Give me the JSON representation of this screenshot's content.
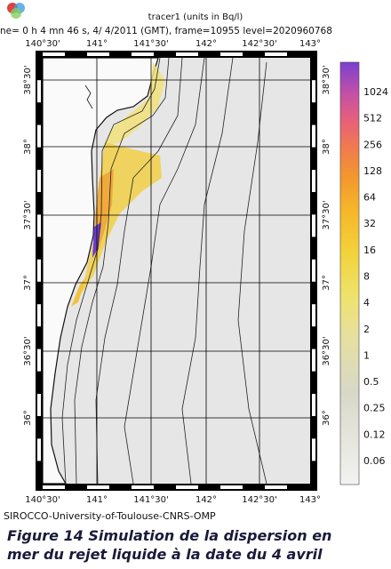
{
  "header": {
    "title": "tracer1 (units in Bq/l)",
    "subtitle": "ne= 0 h  4 mn 46 s,  4/ 4/2011 (GMT), frame=10955 level=2020960768"
  },
  "map": {
    "longitudes": [
      "140°30'",
      "141°",
      "141°30'",
      "142°",
      "142°30'",
      "143°"
    ],
    "latitudes": [
      "38°30'",
      "38°",
      "37°30'",
      "37°",
      "36°30'",
      "36°"
    ]
  },
  "colorbar": {
    "ticks": [
      1024,
      512,
      256,
      128,
      64,
      32,
      16,
      8,
      4,
      2,
      1,
      0.5,
      0.25,
      0.12,
      0.06
    ]
  },
  "footer": "SIROCCO-University-of-Toulouse-CNRS-OMP",
  "caption": {
    "line1": "Figure 14   Simulation de la dispersion en",
    "line2": "mer du rejet liquide à la date du 4 avril"
  }
}
